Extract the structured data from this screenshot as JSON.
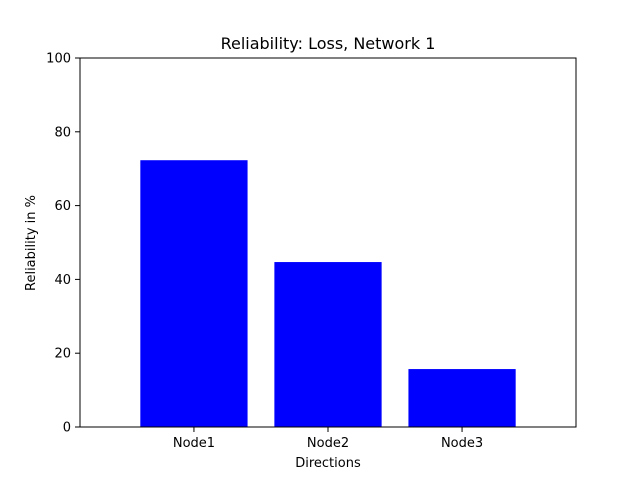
{
  "chart_data": {
    "type": "bar",
    "title": "Reliability: Loss, Network 1",
    "xlabel": "Directions",
    "ylabel": "Reliability in %",
    "categories": [
      "Node1",
      "Node2",
      "Node3"
    ],
    "values": [
      72.3,
      44.7,
      15.7
    ],
    "ylim": [
      0,
      100
    ],
    "yticks": [
      0,
      20,
      40,
      60,
      80,
      100
    ],
    "bar_color": "#0000ff",
    "grid": false,
    "legend": "none"
  }
}
